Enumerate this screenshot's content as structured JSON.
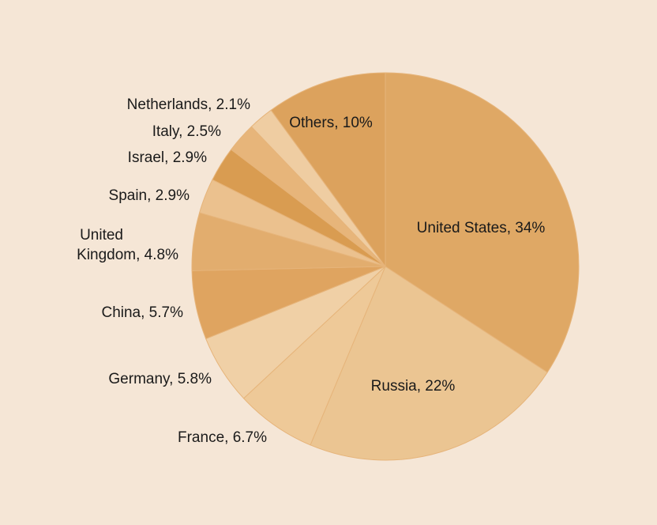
{
  "chart_data": {
    "type": "pie",
    "start_angle_deg": 0,
    "direction": "clockwise",
    "slices": [
      {
        "label": "United States, 34%",
        "category": "United States",
        "value": 34,
        "color": "#dfa865"
      },
      {
        "label": "Russia, 22%",
        "category": "Russia",
        "value": 22,
        "color": "#ebc592"
      },
      {
        "label": "France, 6.7%",
        "category": "France",
        "value": 6.7,
        "color": "#eec998"
      },
      {
        "label": "Germany, 5.8%",
        "category": "Germany",
        "value": 5.8,
        "color": "#f0d0a6"
      },
      {
        "label": "China, 5.7%",
        "category": "China",
        "value": 5.7,
        "color": "#dfa460"
      },
      {
        "label": "United Kingdom, 4.8%",
        "category": "United Kingdom",
        "value": 4.8,
        "color": "#e2ad6e",
        "label_lines": [
          "United",
          "Kingdom, 4.8%"
        ]
      },
      {
        "label": "Spain, 2.9%",
        "category": "Spain",
        "value": 2.9,
        "color": "#ebc18e"
      },
      {
        "label": "Israel, 2.9%",
        "category": "Israel",
        "value": 2.9,
        "color": "#d99c51"
      },
      {
        "label": "Italy, 2.5%",
        "category": "Italy",
        "value": 2.5,
        "color": "#e7b57a"
      },
      {
        "label": "Netherlands, 2.1%",
        "category": "Netherlands",
        "value": 2.1,
        "color": "#efcda2"
      },
      {
        "label": "Others, 10%",
        "category": "Others",
        "value": 10,
        "color": "#dca25d"
      }
    ]
  },
  "colors": {
    "background": "#f5e6d6",
    "slice_border": "#e6b47a",
    "label_text": "#1a1a1a"
  }
}
